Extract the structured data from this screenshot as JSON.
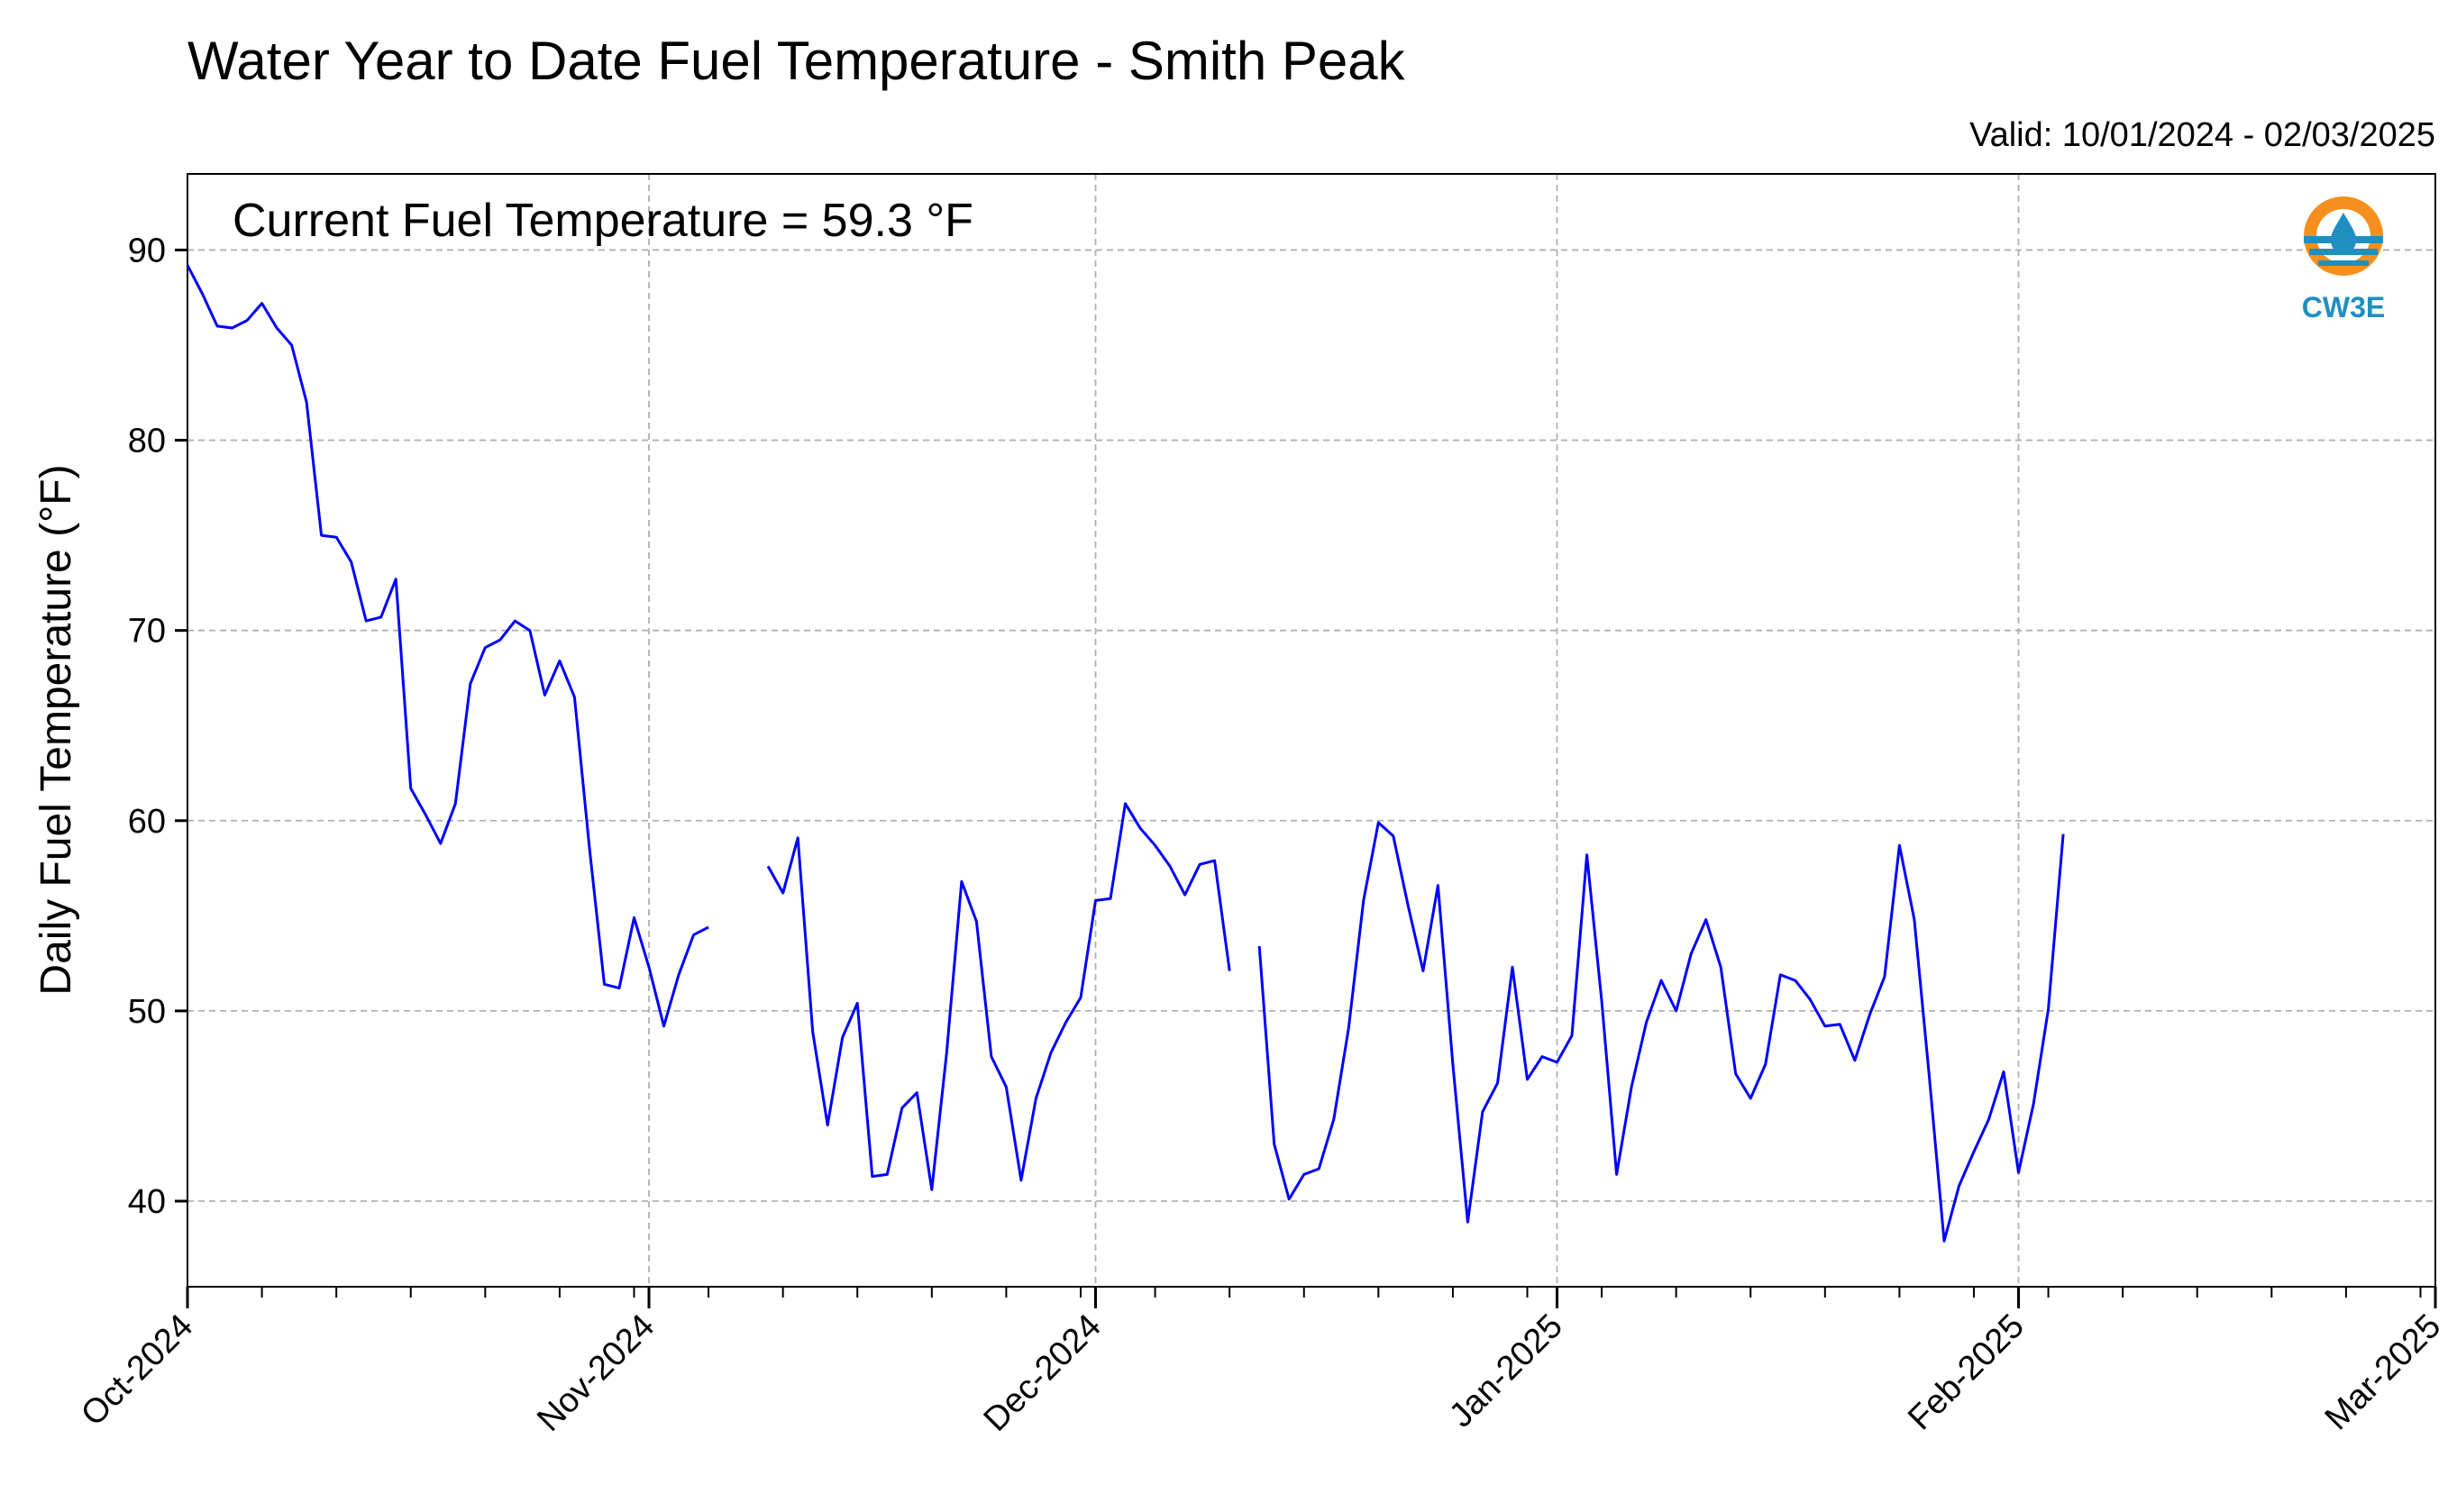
{
  "chart_data": {
    "type": "line",
    "title": "Water Year to Date Fuel Temperature - Smith Peak",
    "subtitle": "Valid: 10/01/2024 - 02/03/2025",
    "annotation": "Current Fuel Temperature = 59.3 °F",
    "xlabel": "",
    "ylabel": "Daily Fuel Temperature (°F)",
    "ylim": [
      35.5,
      94
    ],
    "yticks": [
      40,
      50,
      60,
      70,
      80,
      90
    ],
    "xlim": [
      "2024-10-01",
      "2025-03-01"
    ],
    "xticks": [
      {
        "date": "2024-10-01",
        "label": "Oct-2024"
      },
      {
        "date": "2024-11-01",
        "label": "Nov-2024"
      },
      {
        "date": "2024-12-01",
        "label": "Dec-2024"
      },
      {
        "date": "2025-01-01",
        "label": "Jan-2025"
      },
      {
        "date": "2025-02-01",
        "label": "Feb-2025"
      },
      {
        "date": "2025-03-01",
        "label": "Mar-2025"
      }
    ],
    "grid": true,
    "series_color": "#0000ff",
    "series": [
      {
        "start_date": "2024-10-01",
        "values": [
          89.2,
          87.7,
          86.0,
          85.9,
          86.3,
          87.2,
          85.9,
          85.0,
          82.0,
          75.0,
          74.9,
          73.6,
          70.5,
          70.7,
          72.7,
          61.7,
          60.3,
          58.8,
          60.9,
          67.2,
          69.1,
          69.5,
          70.5,
          70.0,
          66.6,
          68.4,
          66.5,
          58.6,
          51.4,
          51.2,
          54.9,
          52.3,
          49.2,
          51.9,
          54.0,
          54.4,
          null,
          null,
          null,
          57.6,
          56.2,
          59.1,
          48.9,
          44.0,
          48.6,
          50.4,
          41.3,
          41.4,
          44.9,
          45.7,
          40.6,
          47.8,
          56.8,
          54.7,
          47.6,
          46.0,
          41.1,
          45.4,
          47.8,
          49.4,
          50.7,
          55.8,
          55.9,
          60.9,
          59.6,
          58.7,
          57.6,
          56.1,
          57.7,
          57.9,
          52.1,
          null,
          53.4,
          43.0,
          40.1,
          41.4,
          41.7,
          44.3,
          49.1,
          55.8,
          59.9,
          59.2,
          55.5,
          52.1,
          56.6,
          47.2,
          38.9,
          44.7,
          46.2,
          52.3,
          46.4,
          47.6,
          47.3,
          48.7,
          58.2,
          50.5,
          41.4,
          46.0,
          49.4,
          51.6,
          50.0,
          53.0,
          54.8,
          52.3,
          46.7,
          45.4,
          47.2,
          51.9,
          51.6,
          50.6,
          49.2,
          49.3,
          47.4,
          49.8,
          51.8,
          58.7,
          54.8,
          46.6,
          37.9,
          40.8,
          42.6,
          44.3,
          46.8,
          41.5,
          45.1,
          50.1,
          59.3
        ]
      }
    ]
  },
  "logo": {
    "text": "CW3E",
    "colors": {
      "ring": "#f5901e",
      "water": "#1f8fbf",
      "text": "#1f8fbf"
    }
  }
}
